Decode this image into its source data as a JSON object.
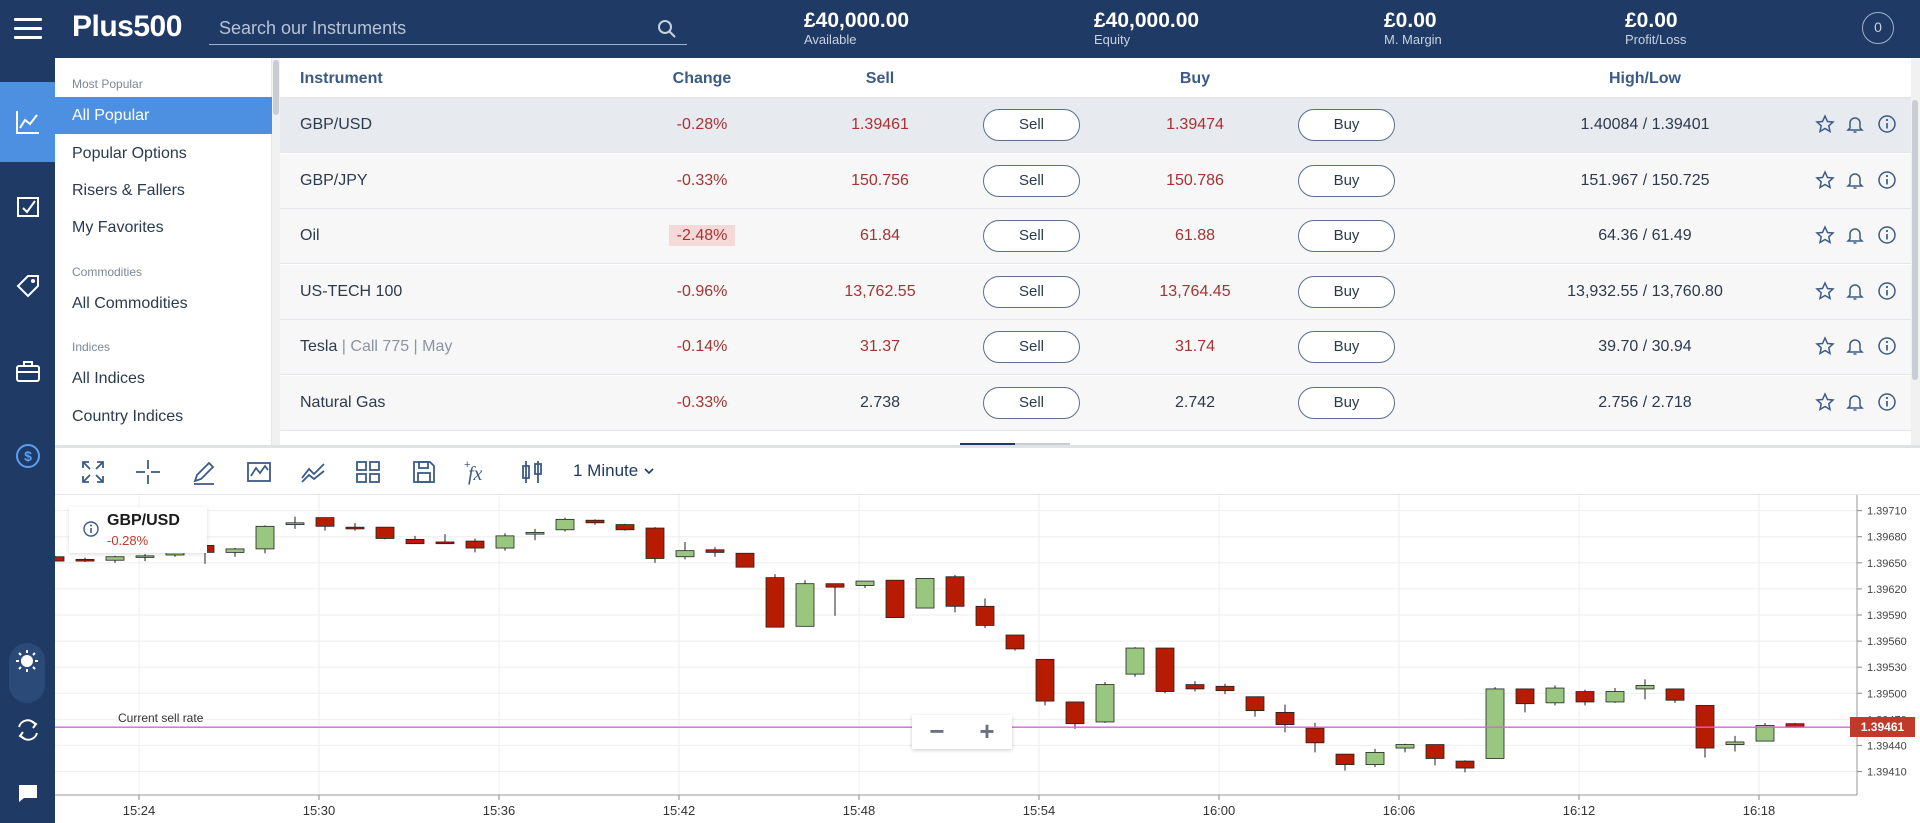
{
  "header": {
    "logo": "Plus500",
    "search_placeholder": "Search our Instruments",
    "stats": [
      {
        "value": "£40,000.00",
        "label": "Available"
      },
      {
        "value": "£40,000.00",
        "label": "Equity"
      },
      {
        "value": "£0.00",
        "label": "M. Margin"
      },
      {
        "value": "£0.00",
        "label": "Profit/Loss"
      }
    ],
    "notifications": "0"
  },
  "categories": {
    "groups": [
      {
        "header": "Most Popular",
        "items": [
          "All Popular",
          "Popular Options",
          "Risers & Fallers",
          "My Favorites"
        ]
      },
      {
        "header": "Commodities",
        "items": [
          "All Commodities"
        ]
      },
      {
        "header": "Indices",
        "items": [
          "All Indices",
          "Country Indices"
        ]
      }
    ],
    "active": "All Popular"
  },
  "table": {
    "columns": {
      "instrument": "Instrument",
      "change": "Change",
      "sell": "Sell",
      "buy": "Buy",
      "highlow": "High/Low"
    },
    "sell_button": "Sell",
    "buy_button": "Buy",
    "rows": [
      {
        "name": "GBP/USD",
        "sub": "",
        "change": "-0.28%",
        "sell": "1.39461",
        "buy": "1.39474",
        "highlow": "1.40084 / 1.39401",
        "neutral": false
      },
      {
        "name": "GBP/JPY",
        "sub": "",
        "change": "-0.33%",
        "sell": "150.756",
        "buy": "150.786",
        "highlow": "151.967 / 150.725",
        "neutral": false
      },
      {
        "name": "Oil",
        "sub": "",
        "change": "-2.48%",
        "sell": "61.84",
        "buy": "61.88",
        "highlow": "64.36 / 61.49",
        "neutral": false
      },
      {
        "name": "US-TECH 100",
        "sub": "",
        "change": "-0.96%",
        "sell": "13,762.55",
        "buy": "13,764.45",
        "highlow": "13,932.55 / 13,760.80",
        "neutral": false
      },
      {
        "name": "Tesla",
        "sub": " | Call 775 | May",
        "change": "-0.14%",
        "sell": "31.37",
        "buy": "31.74",
        "highlow": "39.70 / 30.94",
        "neutral": false
      },
      {
        "name": "Natural Gas",
        "sub": "",
        "change": "-0.33%",
        "sell": "2.738",
        "buy": "2.742",
        "highlow": "2.756 / 2.718",
        "neutral": true
      }
    ]
  },
  "chart_toolbar": {
    "interval": "1 Minute",
    "tools": [
      "fullscreen-icon",
      "crosshair-icon",
      "pencil-icon",
      "chart-type-icon",
      "indicator-icon",
      "layout-grid-icon",
      "save-icon",
      "function-icon",
      "candlestick-icon"
    ]
  },
  "chart_data": {
    "type": "candlestick",
    "symbol": "GBP/USD",
    "change": "-0.28%",
    "current_sell_rate_label": "Current sell rate",
    "current_price": "1.39461",
    "ylim": [
      1.39383,
      1.39728
    ],
    "y_ticks": [
      "1.39710",
      "1.39680",
      "1.39650",
      "1.39620",
      "1.39590",
      "1.39560",
      "1.39530",
      "1.39500",
      "1.39470",
      "1.39440",
      "1.39410"
    ],
    "x_ticks": [
      "15:24",
      "15:30",
      "15:36",
      "15:42",
      "15:48",
      "15:54",
      "16:00",
      "16:06",
      "16:12",
      "16:18"
    ],
    "candles": [
      [
        1.39657,
        1.39658,
        1.39652,
        1.39652
      ],
      [
        1.39654,
        1.39656,
        1.39651,
        1.39652
      ],
      [
        1.39653,
        1.39658,
        1.3965,
        1.39657
      ],
      [
        1.39657,
        1.3966,
        1.39652,
        1.39658
      ],
      [
        1.39659,
        1.39672,
        1.39657,
        1.3967
      ],
      [
        1.3967,
        1.39675,
        1.39649,
        1.39662
      ],
      [
        1.39662,
        1.39667,
        1.39657,
        1.39666
      ],
      [
        1.39666,
        1.39693,
        1.39661,
        1.39692
      ],
      [
        1.39694,
        1.39703,
        1.39689,
        1.39696
      ],
      [
        1.39702,
        1.39702,
        1.39687,
        1.39692
      ],
      [
        1.39691,
        1.39696,
        1.39687,
        1.39689
      ],
      [
        1.39691,
        1.39691,
        1.39677,
        1.39678
      ],
      [
        1.39677,
        1.39681,
        1.39672,
        1.39672
      ],
      [
        1.39674,
        1.39683,
        1.39672,
        1.39672
      ],
      [
        1.39675,
        1.39678,
        1.39662,
        1.39667
      ],
      [
        1.39667,
        1.39684,
        1.39664,
        1.39681
      ],
      [
        1.39683,
        1.39689,
        1.39676,
        1.39685
      ],
      [
        1.39688,
        1.39702,
        1.39686,
        1.397
      ],
      [
        1.39699,
        1.397,
        1.39694,
        1.39696
      ],
      [
        1.39694,
        1.39695,
        1.39687,
        1.39688
      ],
      [
        1.3969,
        1.39691,
        1.3965,
        1.39655
      ],
      [
        1.39657,
        1.39674,
        1.39654,
        1.39664
      ],
      [
        1.39665,
        1.39668,
        1.39657,
        1.39662
      ],
      [
        1.39661,
        1.39661,
        1.39645,
        1.39645
      ],
      [
        1.39633,
        1.39637,
        1.39576,
        1.39576
      ],
      [
        1.39577,
        1.3963,
        1.39577,
        1.39626
      ],
      [
        1.39626,
        1.39625,
        1.39589,
        1.39622
      ],
      [
        1.39624,
        1.39629,
        1.39621,
        1.39629
      ],
      [
        1.3963,
        1.3963,
        1.39589,
        1.39587
      ],
      [
        1.39598,
        1.39632,
        1.39598,
        1.39632
      ],
      [
        1.39634,
        1.39636,
        1.39593,
        1.396
      ],
      [
        1.396,
        1.39609,
        1.39575,
        1.39578
      ],
      [
        1.39567,
        1.39567,
        1.39549,
        1.39551
      ],
      [
        1.39539,
        1.39539,
        1.39486,
        1.39491
      ],
      [
        1.3949,
        1.3949,
        1.39459,
        1.39465
      ],
      [
        1.39467,
        1.39513,
        1.39466,
        1.3951
      ],
      [
        1.39522,
        1.39553,
        1.39519,
        1.39552
      ],
      [
        1.39552,
        1.39552,
        1.395,
        1.39502
      ],
      [
        1.3951,
        1.39514,
        1.39502,
        1.39505
      ],
      [
        1.39508,
        1.39511,
        1.39499,
        1.39503
      ],
      [
        1.39496,
        1.39496,
        1.39473,
        1.3948
      ],
      [
        1.39478,
        1.39487,
        1.39455,
        1.39464
      ],
      [
        1.3946,
        1.39466,
        1.39432,
        1.39443
      ],
      [
        1.3943,
        1.3943,
        1.39411,
        1.39418
      ],
      [
        1.39418,
        1.39436,
        1.39415,
        1.39432
      ],
      [
        1.39437,
        1.39442,
        1.39432,
        1.39441
      ],
      [
        1.39441,
        1.39441,
        1.39417,
        1.39425
      ],
      [
        1.39422,
        1.39423,
        1.39409,
        1.39414
      ],
      [
        1.39425,
        1.39507,
        1.39425,
        1.39505
      ],
      [
        1.39505,
        1.39505,
        1.39478,
        1.39488
      ],
      [
        1.39489,
        1.39509,
        1.39486,
        1.39506
      ],
      [
        1.39502,
        1.39504,
        1.39486,
        1.3949
      ],
      [
        1.3949,
        1.39506,
        1.39489,
        1.39502
      ],
      [
        1.39505,
        1.39516,
        1.39493,
        1.39509
      ],
      [
        1.39505,
        1.39505,
        1.39489,
        1.39492
      ],
      [
        1.39486,
        1.39486,
        1.39426,
        1.39437
      ],
      [
        1.39441,
        1.39451,
        1.39433,
        1.39444
      ],
      [
        1.39445,
        1.39466,
        1.39445,
        1.39463
      ],
      [
        1.39465,
        1.39466,
        1.3946,
        1.39461
      ]
    ],
    "colors": {
      "up": "#9ac77f",
      "down": "#b71c00",
      "current_line": "#e05ce0",
      "price_tag": "#c0392b"
    }
  },
  "colors": {
    "brand": "#1f3a64",
    "accent": "#4d8fe0",
    "negative": "#a83232"
  }
}
